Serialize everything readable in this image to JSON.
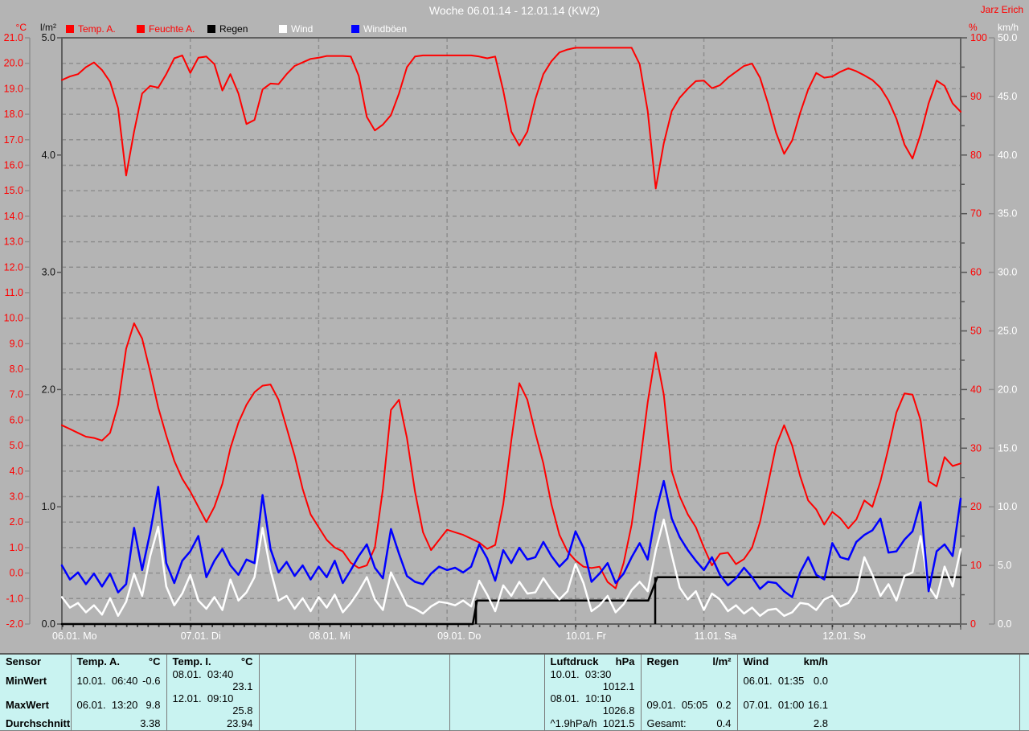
{
  "title_bar": {
    "title": "Woche 06.01.14 - 12.01.14 (KW2)",
    "author": "Jarz Erich"
  },
  "legend": {
    "items": [
      {
        "id": "temp-a",
        "label": "Temp. A.",
        "swatch": "#ff0000",
        "text_color": "#ff0000"
      },
      {
        "id": "feuchte-a",
        "label": "Feuchte A.",
        "swatch": "#ff0000",
        "text_color": "#ff0000"
      },
      {
        "id": "regen",
        "label": "Regen",
        "swatch": "#000000",
        "text_color": "#000000"
      },
      {
        "id": "wind",
        "label": "Wind",
        "swatch": "#ffffff",
        "text_color": "#ffffff"
      },
      {
        "id": "windboeen",
        "label": "Windböen",
        "swatch": "#0000ff",
        "text_color": "#ffffff"
      }
    ]
  },
  "chart_data": {
    "type": "line",
    "title": "Woche 06.01.14 - 12.01.14 (KW2)",
    "x_unit": "hours since 06.01.2014 00:00",
    "x_range": [
      0,
      168
    ],
    "x_labels": [
      "06.01. Mo",
      "07.01. Di",
      "08.01. Mi",
      "09.01. Do",
      "10.01. Fr",
      "11.01. Sa",
      "12.01. So"
    ],
    "grid": {
      "horizontal_step_degC": 1.0,
      "vertical_step_days": 1
    },
    "axes": {
      "temp": {
        "unit": "°C",
        "color": "#ff0000",
        "range": [
          -2,
          21
        ],
        "ticks": [
          "21.0",
          "20.0",
          "19.0",
          "18.0",
          "17.0",
          "16.0",
          "15.0",
          "14.0",
          "13.0",
          "12.0",
          "11.0",
          "10.0",
          "9.0",
          "8.0",
          "7.0",
          "6.0",
          "5.0",
          "4.0",
          "3.0",
          "2.0",
          "1.0",
          "0.0",
          "-1.0",
          "-2.0"
        ]
      },
      "rain": {
        "unit": "l/m²",
        "color": "#000000",
        "range": [
          0,
          5
        ],
        "ticks": [
          "5.0",
          "4.0",
          "3.0",
          "2.0",
          "1.0",
          "0.0"
        ]
      },
      "humidity": {
        "unit": "%",
        "color": "#ff0000",
        "range": [
          0,
          100
        ],
        "ticks": [
          "100",
          "90",
          "80",
          "70",
          "60",
          "50",
          "40",
          "30",
          "20",
          "10",
          "0"
        ]
      },
      "windspeed": {
        "unit": "km/h",
        "color": "#ffffff",
        "range": [
          0,
          50
        ],
        "ticks": [
          "50.0",
          "45.0",
          "40.0",
          "35.0",
          "30.0",
          "25.0",
          "20.0",
          "15.0",
          "10.0",
          "5.0",
          "0.0"
        ]
      }
    },
    "series": [
      {
        "id": "feuchte-a",
        "label": "Feuchte A.",
        "color": "#ff0000",
        "width": 2,
        "range": [
          0,
          100
        ],
        "step_h": 1.5,
        "values": [
          92.8,
          93.4,
          93.8,
          95.0,
          95.8,
          94.5,
          92.5,
          88.0,
          76.5,
          84.0,
          90.5,
          91.8,
          91.5,
          93.8,
          96.5,
          97.0,
          94.0,
          96.6,
          96.8,
          95.5,
          91.0,
          93.8,
          90.5,
          85.3,
          86.0,
          91.2,
          92.2,
          92.1,
          93.8,
          95.2,
          95.8,
          96.4,
          96.6,
          96.9,
          96.9,
          96.9,
          96.8,
          93.5,
          86.5,
          84.2,
          85.2,
          86.8,
          90.5,
          95.0,
          96.8,
          97.0,
          97.0,
          97.0,
          97.0,
          97.0,
          97.0,
          97.0,
          96.8,
          96.5,
          96.8,
          91.0,
          84.0,
          81.6,
          84.0,
          89.5,
          93.8,
          96.0,
          97.5,
          98.0,
          98.3,
          98.3,
          98.3,
          98.3,
          98.3,
          98.3,
          98.3,
          98.3,
          95.5,
          87.5,
          74.3,
          82.0,
          87.5,
          89.8,
          91.3,
          92.6,
          92.7,
          91.4,
          91.9,
          93.2,
          94.2,
          95.2,
          95.6,
          93.2,
          88.8,
          83.8,
          80.2,
          82.5,
          87.2,
          91.2,
          94.0,
          93.2,
          93.4,
          94.2,
          94.8,
          94.3,
          93.6,
          92.8,
          91.5,
          89.3,
          86.2,
          81.8,
          79.4,
          83.5,
          88.8,
          92.7,
          91.8,
          88.8,
          87.4
        ]
      },
      {
        "id": "temp-a",
        "label": "Temp. A.",
        "color": "#ff0000",
        "width": 2,
        "range": [
          -2,
          21
        ],
        "step_h": 1.5,
        "values": [
          5.8,
          5.65,
          5.5,
          5.35,
          5.3,
          5.2,
          5.5,
          6.6,
          8.8,
          9.8,
          9.2,
          7.9,
          6.5,
          5.4,
          4.4,
          3.7,
          3.2,
          2.6,
          2.0,
          2.6,
          3.5,
          4.9,
          5.9,
          6.6,
          7.1,
          7.35,
          7.4,
          6.8,
          5.7,
          4.6,
          3.3,
          2.3,
          1.8,
          1.3,
          1.0,
          0.85,
          0.4,
          0.2,
          0.3,
          1.0,
          3.3,
          6.4,
          6.8,
          5.3,
          3.2,
          1.6,
          0.9,
          1.3,
          1.7,
          1.6,
          1.5,
          1.35,
          1.2,
          0.95,
          1.1,
          2.7,
          5.2,
          7.45,
          6.8,
          5.5,
          4.3,
          2.7,
          1.5,
          0.85,
          0.5,
          0.25,
          0.2,
          0.25,
          -0.35,
          -0.6,
          0.4,
          1.9,
          4.2,
          6.7,
          8.65,
          7.0,
          4.0,
          3.0,
          2.3,
          1.8,
          1.0,
          0.3,
          0.75,
          0.8,
          0.35,
          0.55,
          1.0,
          2.0,
          3.5,
          5.0,
          5.8,
          5.0,
          3.8,
          2.85,
          2.5,
          1.9,
          2.4,
          2.15,
          1.75,
          2.1,
          2.85,
          2.6,
          3.6,
          4.9,
          6.3,
          7.05,
          7.0,
          6.0,
          3.6,
          3.4,
          4.55,
          4.2,
          4.3
        ]
      },
      {
        "id": "wind",
        "label": "Wind",
        "color": "#ffffff",
        "width": 2.5,
        "range": [
          0,
          50
        ],
        "step_h": 1.5,
        "values": [
          2.3,
          1.4,
          1.8,
          1.0,
          1.6,
          0.8,
          2.2,
          0.7,
          1.9,
          4.3,
          2.4,
          5.8,
          8.3,
          3.2,
          1.6,
          2.6,
          4.2,
          2.0,
          1.3,
          2.3,
          1.2,
          3.8,
          2.0,
          2.7,
          4.0,
          8.2,
          4.6,
          2.0,
          2.4,
          1.3,
          2.2,
          1.1,
          2.3,
          1.4,
          2.5,
          1.0,
          1.8,
          2.8,
          4.0,
          2.1,
          1.2,
          4.4,
          3.0,
          1.6,
          1.3,
          0.9,
          1.5,
          1.9,
          1.8,
          1.6,
          2.0,
          1.5,
          3.7,
          2.5,
          1.1,
          3.3,
          2.4,
          3.6,
          2.6,
          2.7,
          3.9,
          2.9,
          2.1,
          2.8,
          5.1,
          3.5,
          1.1,
          1.6,
          2.4,
          1.0,
          1.7,
          2.9,
          3.6,
          2.8,
          6.3,
          8.9,
          5.9,
          3.1,
          2.1,
          2.8,
          1.2,
          2.6,
          2.1,
          1.1,
          1.6,
          0.9,
          1.4,
          0.7,
          1.2,
          1.3,
          0.7,
          1.0,
          1.8,
          1.7,
          1.2,
          2.1,
          2.4,
          1.5,
          1.8,
          2.8,
          5.7,
          4.2,
          2.4,
          3.4,
          2.0,
          4.1,
          4.4,
          7.5,
          3.2,
          2.2,
          4.9,
          3.2,
          6.4
        ]
      },
      {
        "id": "windboeen",
        "label": "Windböen",
        "color": "#0000ff",
        "width": 2.5,
        "range": [
          0,
          50
        ],
        "step_h": 1.5,
        "values": [
          5.0,
          3.8,
          4.4,
          3.4,
          4.3,
          3.2,
          4.3,
          2.7,
          3.4,
          8.2,
          4.6,
          7.8,
          11.7,
          5.2,
          3.5,
          5.4,
          6.2,
          7.5,
          4.0,
          5.4,
          6.4,
          5.0,
          4.2,
          5.5,
          5.2,
          11.0,
          6.4,
          4.4,
          5.3,
          4.1,
          5.0,
          3.8,
          4.9,
          4.0,
          5.4,
          3.5,
          4.6,
          5.8,
          6.8,
          4.8,
          3.9,
          8.1,
          6.0,
          4.1,
          3.6,
          3.4,
          4.3,
          4.9,
          4.6,
          4.8,
          4.4,
          4.9,
          6.8,
          5.6,
          3.7,
          6.3,
          5.2,
          6.5,
          5.5,
          5.7,
          7.0,
          5.8,
          4.9,
          5.6,
          7.9,
          6.5,
          3.6,
          4.3,
          5.2,
          3.5,
          4.3,
          5.7,
          6.9,
          5.5,
          9.5,
          12.2,
          9.0,
          7.4,
          6.3,
          5.4,
          4.6,
          5.7,
          4.2,
          3.3,
          3.9,
          4.8,
          4.0,
          3.0,
          3.6,
          3.5,
          2.8,
          2.3,
          4.4,
          5.7,
          4.2,
          3.8,
          6.9,
          5.7,
          5.5,
          7.0,
          7.6,
          8.0,
          9.0,
          6.1,
          6.2,
          7.2,
          7.9,
          10.4,
          2.8,
          6.2,
          6.8,
          5.8,
          10.7
        ]
      }
    ],
    "regen": {
      "id": "regen",
      "label": "Regen",
      "color": "#000000",
      "width": 2.5,
      "range": [
        0,
        5
      ],
      "points": [
        [
          0,
          0
        ],
        [
          76.8,
          0
        ],
        [
          77.6,
          0.2
        ],
        [
          109.6,
          0.2
        ],
        [
          111.3,
          0.4
        ],
        [
          168,
          0.4
        ]
      ],
      "event_bars": [
        {
          "h": 77.4,
          "v": 0.2
        },
        {
          "h": 110.9,
          "v": 0.4
        }
      ]
    }
  },
  "table": {
    "row_labels": [
      "Sensor",
      "MinWert",
      "MaxWert",
      "Durchschnitt"
    ],
    "columns": [
      {
        "name": "Temp. A.",
        "unit": "°C",
        "rows": [
          [
            "10.01.  06:40",
            "-0.6"
          ],
          [
            "06.01.  13:20",
            "9.8"
          ],
          [
            "",
            "3.38"
          ]
        ]
      },
      {
        "name": "Temp. I.",
        "unit": "°C",
        "rows": [
          [
            "08.01.  03:40",
            "23.1"
          ],
          [
            "12.01.  09:10",
            "25.8"
          ],
          [
            "",
            "23.94"
          ]
        ]
      },
      {
        "name": "",
        "unit": "",
        "rows": [
          [
            "",
            ""
          ],
          [
            "",
            ""
          ],
          [
            "",
            ""
          ]
        ]
      },
      {
        "name": "",
        "unit": "",
        "rows": [
          [
            "",
            ""
          ],
          [
            "",
            ""
          ],
          [
            "",
            ""
          ]
        ]
      },
      {
        "name": "",
        "unit": "",
        "rows": [
          [
            "",
            ""
          ],
          [
            "",
            ""
          ],
          [
            "",
            ""
          ]
        ]
      },
      {
        "name": "Luftdruck",
        "unit": "hPa",
        "rows": [
          [
            "10.01.  03:30",
            "1012.1"
          ],
          [
            "08.01.  10:10",
            "1026.8"
          ],
          [
            "^1.9hPa/h",
            "1021.5"
          ]
        ]
      },
      {
        "name": "Regen",
        "unit": "l/m²",
        "rows": [
          [
            "",
            ""
          ],
          [
            "09.01.  05:05",
            "0.2"
          ],
          [
            "Gesamt:",
            "0.4"
          ]
        ]
      },
      {
        "name": "Wind",
        "unit": "km/h",
        "rows": [
          [
            "06.01.  01:35",
            "0.0"
          ],
          [
            "07.01.  01:00",
            "16.1"
          ],
          [
            "",
            "2.8"
          ]
        ]
      }
    ]
  }
}
